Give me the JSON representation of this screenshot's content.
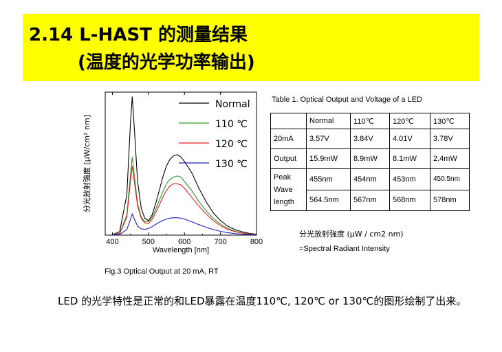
{
  "header": {
    "title_line1": "2.14 L-HAST 的测量结果",
    "title_line2": "(温度的光学功率输出)"
  },
  "figure": {
    "caption": "Fig.3 Optical Output  at 20 mA, RT"
  },
  "chart_data": {
    "type": "line",
    "xlabel": "Wavelength [nm]",
    "ylabel": "分光放射強度 [μW/cm² nm]",
    "xlim": [
      380,
      800
    ],
    "x_ticks": [
      "400",
      "500",
      "600",
      "700",
      "800"
    ],
    "y_ticks_visible": false,
    "legend_position": "top-right",
    "x": [
      400,
      420,
      440,
      450,
      455,
      460,
      470,
      480,
      490,
      500,
      510,
      520,
      530,
      540,
      550,
      560,
      570,
      580,
      590,
      600,
      620,
      640,
      660,
      680,
      700,
      720,
      740,
      760,
      780,
      800
    ],
    "series": [
      {
        "name": "Normal",
        "color": "#000000",
        "values": [
          0.2,
          1.5,
          18,
          50,
          62,
          50,
          24,
          12,
          7.5,
          6.5,
          9,
          14,
          20,
          26,
          31,
          34,
          35.5,
          36,
          35,
          33,
          28,
          21,
          15,
          10,
          6.5,
          4,
          2.5,
          1.5,
          0.8,
          0.4
        ]
      },
      {
        "name": "110 ℃",
        "color": "#2e9a2e",
        "values": [
          0.1,
          0.8,
          9,
          27,
          35,
          28,
          14,
          8,
          6,
          6,
          8,
          11.5,
          15.5,
          19.5,
          23,
          25,
          26,
          26.5,
          26,
          24,
          20,
          15,
          11,
          7.5,
          5,
          3,
          1.8,
          1,
          0.6,
          0.3
        ]
      },
      {
        "name": "120 ℃",
        "color": "#e02020",
        "values": [
          0.1,
          0.7,
          8,
          24,
          31,
          25,
          13,
          7.5,
          5.5,
          5.2,
          7,
          10,
          13.5,
          17,
          20,
          22,
          23,
          23,
          22.5,
          21,
          17,
          13,
          9.5,
          6.5,
          4.2,
          2.6,
          1.6,
          0.9,
          0.5,
          0.3
        ]
      },
      {
        "name": "130 ℃",
        "color": "#2020c0",
        "values": [
          0.05,
          0.3,
          2.5,
          7,
          9.5,
          7.5,
          4,
          2.8,
          2.6,
          3,
          3.8,
          4.8,
          5.8,
          6.6,
          7.2,
          7.6,
          7.8,
          7.8,
          7.6,
          7.2,
          6,
          4.7,
          3.5,
          2.5,
          1.7,
          1.1,
          0.7,
          0.4,
          0.25,
          0.15
        ]
      }
    ]
  },
  "table": {
    "title": "Table 1. Optical Output and Voltage of a LED",
    "headers": [
      "",
      "Normal",
      "110℃",
      "120℃",
      "130℃"
    ],
    "rows": [
      [
        "20mA",
        "3.57V",
        "3.84V",
        "4.01V",
        "3.78V"
      ],
      [
        "Output",
        "15.9mW",
        "8.9mW",
        "8.1mW",
        "2.4mW"
      ]
    ],
    "peak_label_lines": [
      "Peak",
      "Wave",
      "length"
    ],
    "peak_rows": [
      [
        "455nm",
        "454nm",
        "453nm",
        "450.5nm"
      ],
      [
        "564.5nm",
        "567nm",
        "568nm",
        "578nm"
      ]
    ],
    "unit_note": "分光放射強度  (μW / cm2 nm)",
    "definition_note": "=Spectral Radiant Intensity"
  },
  "body": {
    "text": "LED 的光学特性是正常的和LED暴露在温度110℃, 120℃ or 130℃的图形绘制了出来。"
  }
}
